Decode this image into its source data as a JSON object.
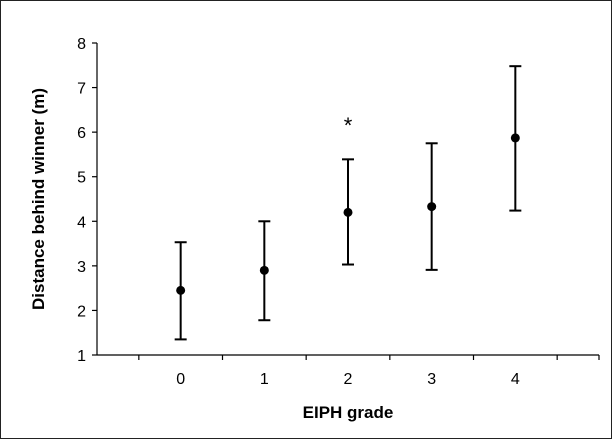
{
  "chart_data": {
    "type": "scatter",
    "title": "",
    "xlabel": "EIPH grade",
    "ylabel": "Distance behind winner (m)",
    "xlim": [
      -1,
      5
    ],
    "ylim": [
      1,
      8
    ],
    "x_ticks": [
      "0",
      "1",
      "2",
      "3",
      "4"
    ],
    "y_ticks": [
      "1",
      "2",
      "3",
      "4",
      "5",
      "6",
      "7",
      "8"
    ],
    "grid": false,
    "legend": "none",
    "series": [
      {
        "points": [
          {
            "x": 0,
            "y": 2.45,
            "err_low": 1.35,
            "err_high": 3.53
          },
          {
            "x": 1,
            "y": 2.9,
            "err_low": 1.78,
            "err_high": 4.0
          },
          {
            "x": 2,
            "y": 4.2,
            "err_low": 3.03,
            "err_high": 5.39
          },
          {
            "x": 3,
            "y": 4.33,
            "err_low": 2.91,
            "err_high": 5.75
          },
          {
            "x": 4,
            "y": 5.87,
            "err_low": 4.24,
            "err_high": 7.48
          }
        ]
      }
    ],
    "annotations": [
      {
        "text": "*",
        "x": 2,
        "y": 6.2
      }
    ],
    "colors": {
      "marker": "#000000",
      "axis": "#000000"
    }
  }
}
